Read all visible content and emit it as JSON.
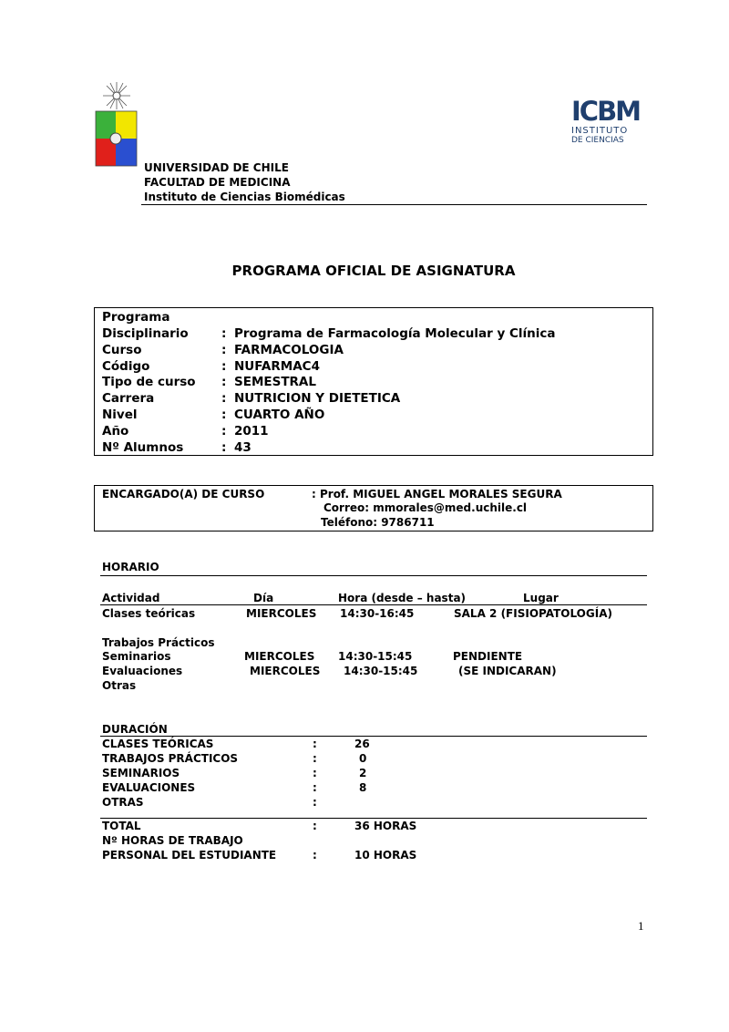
{
  "header": {
    "university": "UNIVERSIDAD DE CHILE",
    "faculty": "FACULTAD DE MEDICINA",
    "institute": "Instituto de Ciencias Biomédicas",
    "icbm_logo": {
      "mark": "ICBM",
      "line1": "INSTITUTO",
      "line2": "DE CIENCIAS"
    }
  },
  "title": "PROGRAMA OFICIAL DE ASIGNATURA",
  "course_info": [
    {
      "label": "Programa",
      "value": ""
    },
    {
      "label": "Disciplinario",
      "value": "Programa de Farmacología Molecular y Clínica"
    },
    {
      "label": "Curso",
      "value": "FARMACOLOGIA"
    },
    {
      "label": "Código",
      "value": "NUFARMAC4"
    },
    {
      "label": "Tipo de curso",
      "value": "SEMESTRAL"
    },
    {
      "label": "Carrera",
      "value": "NUTRICION Y DIETETICA"
    },
    {
      "label": "Nivel",
      "value": "CUARTO AÑO"
    },
    {
      "label": "Año",
      "value": "2011"
    },
    {
      "label": "Nº Alumnos",
      "value": "43"
    }
  ],
  "encargado": {
    "label": "ENCARGADO(A) DE CURSO",
    "name": ": Prof. MIGUEL ANGEL MORALES SEGURA",
    "email": "Correo: mmorales@med.uchile.cl",
    "phone": "Teléfono: 9786711"
  },
  "horario": {
    "heading": "HORARIO",
    "columns": [
      "Actividad",
      "Día",
      "Hora (desde – hasta)",
      "Lugar"
    ],
    "rows": [
      {
        "actividad": "Clases teóricas",
        "dia": "MIERCOLES",
        "hora": "14:30-16:45",
        "lugar": "SALA  2  (FISIOPATOLOGÍA)"
      },
      {
        "actividad": "Trabajos Prácticos",
        "dia": "",
        "hora": "",
        "lugar": ""
      },
      {
        "actividad": "Seminarios",
        "dia": "MIERCOLES",
        "hora": "14:30-15:45",
        "lugar": "PENDIENTE"
      },
      {
        "actividad": "Evaluaciones",
        "dia": "MIERCOLES",
        "hora": "14:30-15:45",
        "lugar": "(SE INDICARAN)"
      },
      {
        "actividad": "Otras",
        "dia": "",
        "hora": "",
        "lugar": ""
      }
    ]
  },
  "duracion": {
    "heading": "DURACIÓN",
    "rows": [
      {
        "label": "CLASES TEÓRICAS",
        "value": "26"
      },
      {
        "label": "TRABAJOS PRÁCTICOS",
        "value": "0"
      },
      {
        "label": "SEMINARIOS",
        "value": "2"
      },
      {
        "label": "EVALUACIONES",
        "value": "8"
      },
      {
        "label": "OTRAS",
        "value": ""
      }
    ],
    "total_label": "TOTAL",
    "total_value": "36 HORAS",
    "personal_label_1": "Nº HORAS DE TRABAJO",
    "personal_label_2": "PERSONAL DEL ESTUDIANTE",
    "personal_value": "10 HORAS",
    "colon": ":"
  },
  "page_number": "1"
}
